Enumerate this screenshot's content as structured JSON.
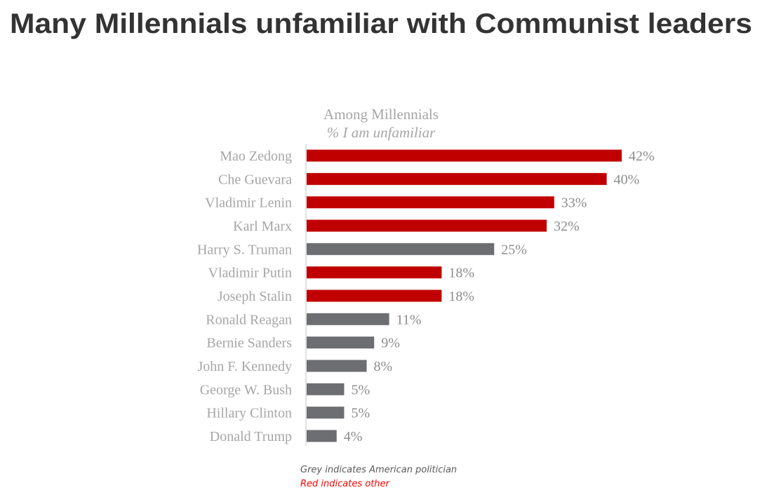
{
  "chart_data": {
    "type": "bar",
    "orientation": "horizontal",
    "title": "Many Millennials unfamiliar with Communist leaders",
    "subtitle": "Among Millennials",
    "subtitle2": "% I am unfamiliar",
    "categories": [
      "Mao Zedong",
      "Che Guevara",
      "Vladimir Lenin",
      "Karl Marx",
      "Harry S. Truman",
      "Vladimir Putin",
      "Joseph Stalin",
      "Ronald Reagan",
      "Bernie Sanders",
      "John F. Kennedy",
      "George W. Bush",
      "Hillary Clinton",
      "Donald Trump"
    ],
    "values": [
      42,
      40,
      33,
      32,
      25,
      18,
      18,
      11,
      9,
      8,
      5,
      5,
      4
    ],
    "value_labels": [
      "42%",
      "40%",
      "33%",
      "32%",
      "25%",
      "18%",
      "18%",
      "11%",
      "9%",
      "8%",
      "5%",
      "5%",
      "4%"
    ],
    "groups": [
      "other",
      "other",
      "other",
      "other",
      "american",
      "other",
      "other",
      "american",
      "american",
      "american",
      "american",
      "american",
      "american"
    ],
    "xlim": [
      0,
      42
    ],
    "grid": false,
    "colors": {
      "other": "#c00000",
      "american": "#6d6e71"
    },
    "notes": [
      {
        "text": "Grey indicates American politician",
        "color": "#595959"
      },
      {
        "text": "Red indicates other",
        "color": "#ff0000"
      }
    ]
  }
}
